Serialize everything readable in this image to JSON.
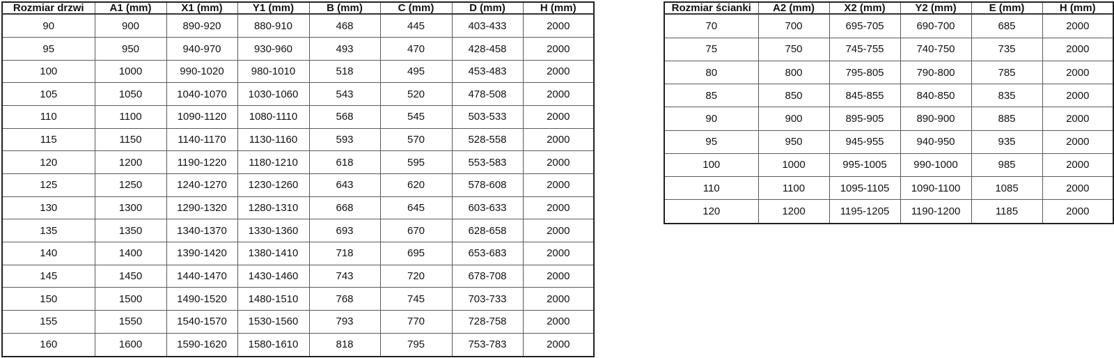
{
  "colors": {
    "background": "#ffffff",
    "border_outer": "#1f1f1f",
    "border_inner": "#595959",
    "text": "#111111"
  },
  "door_table": {
    "headers": [
      "Rozmiar drzwi",
      "A1 (mm)",
      "X1 (mm)",
      "Y1 (mm)",
      "B (mm)",
      "C (mm)",
      "D (mm)",
      "H (mm)"
    ],
    "rows": [
      [
        "90",
        "900",
        "890-920",
        "880-910",
        "468",
        "445",
        "403-433",
        "2000"
      ],
      [
        "95",
        "950",
        "940-970",
        "930-960",
        "493",
        "470",
        "428-458",
        "2000"
      ],
      [
        "100",
        "1000",
        "990-1020",
        "980-1010",
        "518",
        "495",
        "453-483",
        "2000"
      ],
      [
        "105",
        "1050",
        "1040-1070",
        "1030-1060",
        "543",
        "520",
        "478-508",
        "2000"
      ],
      [
        "110",
        "1100",
        "1090-1120",
        "1080-1110",
        "568",
        "545",
        "503-533",
        "2000"
      ],
      [
        "115",
        "1150",
        "1140-1170",
        "1130-1160",
        "593",
        "570",
        "528-558",
        "2000"
      ],
      [
        "120",
        "1200",
        "1190-1220",
        "1180-1210",
        "618",
        "595",
        "553-583",
        "2000"
      ],
      [
        "125",
        "1250",
        "1240-1270",
        "1230-1260",
        "643",
        "620",
        "578-608",
        "2000"
      ],
      [
        "130",
        "1300",
        "1290-1320",
        "1280-1310",
        "668",
        "645",
        "603-633",
        "2000"
      ],
      [
        "135",
        "1350",
        "1340-1370",
        "1330-1360",
        "693",
        "670",
        "628-658",
        "2000"
      ],
      [
        "140",
        "1400",
        "1390-1420",
        "1380-1410",
        "718",
        "695",
        "653-683",
        "2000"
      ],
      [
        "145",
        "1450",
        "1440-1470",
        "1430-1460",
        "743",
        "720",
        "678-708",
        "2000"
      ],
      [
        "150",
        "1500",
        "1490-1520",
        "1480-1510",
        "768",
        "745",
        "703-733",
        "2000"
      ],
      [
        "155",
        "1550",
        "1540-1570",
        "1530-1560",
        "793",
        "770",
        "728-758",
        "2000"
      ],
      [
        "160",
        "1600",
        "1590-1620",
        "1580-1610",
        "818",
        "795",
        "753-783",
        "2000"
      ]
    ]
  },
  "wall_table": {
    "headers": [
      "Rozmiar ścianki",
      "A2 (mm)",
      "X2 (mm)",
      "Y2 (mm)",
      "E (mm)",
      "H (mm)"
    ],
    "rows": [
      [
        "70",
        "700",
        "695-705",
        "690-700",
        "685",
        "2000"
      ],
      [
        "75",
        "750",
        "745-755",
        "740-750",
        "735",
        "2000"
      ],
      [
        "80",
        "800",
        "795-805",
        "790-800",
        "785",
        "2000"
      ],
      [
        "85",
        "850",
        "845-855",
        "840-850",
        "835",
        "2000"
      ],
      [
        "90",
        "900",
        "895-905",
        "890-900",
        "885",
        "2000"
      ],
      [
        "95",
        "950",
        "945-955",
        "940-950",
        "935",
        "2000"
      ],
      [
        "100",
        "1000",
        "995-1005",
        "990-1000",
        "985",
        "2000"
      ],
      [
        "110",
        "1100",
        "1095-1105",
        "1090-1100",
        "1085",
        "2000"
      ],
      [
        "120",
        "1200",
        "1195-1205",
        "1190-1200",
        "1185",
        "2000"
      ]
    ]
  }
}
